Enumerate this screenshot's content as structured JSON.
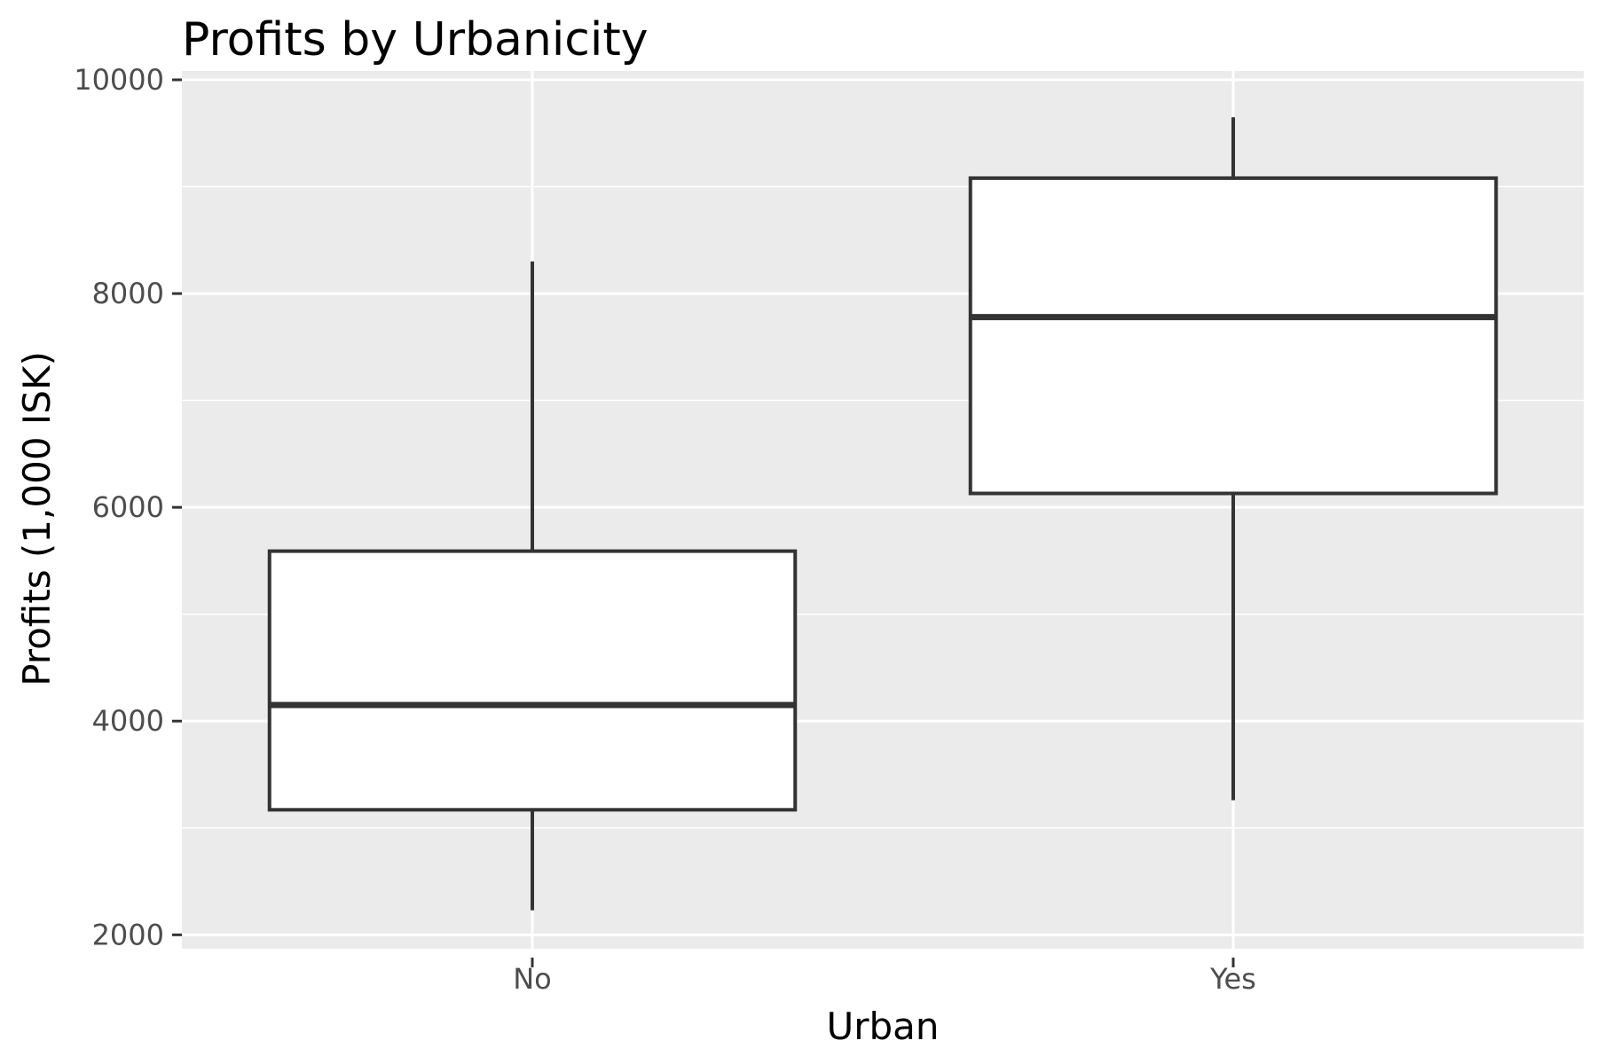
{
  "chart_data": {
    "type": "boxplot",
    "title": "Profits by Urbanicity",
    "xlabel": "Urban",
    "ylabel": "Profits (1,000 ISK)",
    "categories": [
      "No",
      "Yes"
    ],
    "boxes": [
      {
        "category": "No",
        "whisker_low": 2230,
        "q1": 3170,
        "median": 4150,
        "q3": 5590,
        "whisker_high": 8300
      },
      {
        "category": "Yes",
        "whisker_low": 3260,
        "q1": 6130,
        "median": 7780,
        "q3": 9080,
        "whisker_high": 9650
      }
    ],
    "ylim": [
      1870,
      10000
    ],
    "yticks": [
      "2000",
      "4000",
      "6000",
      "8000",
      "10000"
    ],
    "grid": true,
    "colors": {
      "panel": "#ebebeb",
      "grid": "#ffffff",
      "box_fill": "#ffffff",
      "box_line": "#333333",
      "tick_label": "#4d4d4d"
    }
  }
}
